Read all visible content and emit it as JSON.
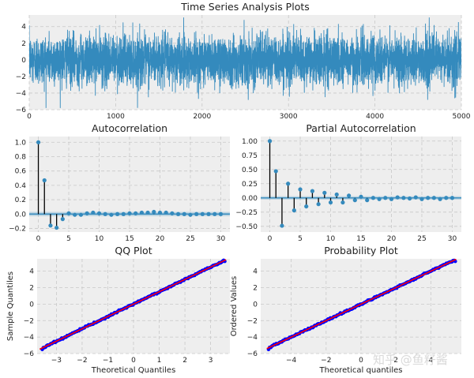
{
  "watermark": "知乎 @鱼籽酱",
  "colors": {
    "bg": "#eeeeee",
    "grid": "#c8c8c8",
    "line": "#348ABD",
    "stem": "#000000",
    "band": "#348ABD",
    "qq_points": "#0000ff",
    "qq_line": "#ff0000"
  },
  "chart_data": [
    {
      "id": "ts",
      "type": "line",
      "title": "Time Series Analysis Plots",
      "xlim": [
        0,
        5000
      ],
      "ylim": [
        -6,
        5.4
      ],
      "xticks": [
        0,
        1000,
        2000,
        3000,
        4000,
        5000
      ],
      "yticks": [
        -6,
        -4,
        -2,
        0,
        2,
        4
      ],
      "n_points": 5000,
      "approx_std": 1.5,
      "grid": true
    },
    {
      "id": "acf",
      "type": "stem",
      "title": "Autocorrelation",
      "xlim": [
        -1.5,
        31.5
      ],
      "ylim": [
        -0.25,
        1.08
      ],
      "xticks": [
        0,
        5,
        10,
        15,
        20,
        25,
        30
      ],
      "yticks": [
        -0.2,
        0.0,
        0.2,
        0.4,
        0.6,
        0.8,
        1.0
      ],
      "x": [
        0,
        1,
        2,
        3,
        4,
        5,
        6,
        7,
        8,
        9,
        10,
        11,
        12,
        13,
        14,
        15,
        16,
        17,
        18,
        19,
        20,
        21,
        22,
        23,
        24,
        25,
        26,
        27,
        28,
        29,
        30
      ],
      "values": [
        1.0,
        0.47,
        -0.16,
        -0.19,
        -0.07,
        0.01,
        -0.01,
        -0.01,
        0.01,
        0.02,
        0.01,
        0.0,
        -0.01,
        0.0,
        0.0,
        0.01,
        0.01,
        0.02,
        0.02,
        0.03,
        0.02,
        0.02,
        0.01,
        0.0,
        0.0,
        -0.01,
        0.0,
        0.0,
        0.0,
        0.0,
        0.0
      ],
      "conf_band": 0.03,
      "grid": true
    },
    {
      "id": "pacf",
      "type": "stem",
      "title": "Partial Autocorrelation",
      "xlim": [
        -1.5,
        31.5
      ],
      "ylim": [
        -0.6,
        1.08
      ],
      "xticks": [
        0,
        5,
        10,
        15,
        20,
        25,
        30
      ],
      "yticks": [
        -0.5,
        -0.25,
        0.0,
        0.25,
        0.5,
        0.75,
        1.0
      ],
      "x": [
        0,
        1,
        2,
        3,
        4,
        5,
        6,
        7,
        8,
        9,
        10,
        11,
        12,
        13,
        14,
        15,
        16,
        17,
        18,
        19,
        20,
        21,
        22,
        23,
        24,
        25,
        26,
        27,
        28,
        29,
        30
      ],
      "values": [
        1.0,
        0.47,
        -0.49,
        0.25,
        -0.22,
        0.15,
        -0.15,
        0.12,
        -0.11,
        0.09,
        -0.08,
        0.06,
        -0.08,
        0.04,
        -0.04,
        0.02,
        -0.04,
        0.0,
        -0.02,
        0.0,
        -0.02,
        0.01,
        0.0,
        -0.01,
        0.01,
        -0.02,
        0.0,
        0.0,
        -0.02,
        0.0,
        0.0
      ],
      "conf_band": 0.03,
      "grid": true
    },
    {
      "id": "qq",
      "type": "scatter",
      "title": "QQ Plot",
      "xlabel": "Theoretical Quantiles",
      "ylabel": "Sample Quantiles",
      "xlim": [
        -3.75,
        3.75
      ],
      "ylim": [
        -6,
        5.5
      ],
      "xticks": [
        -3,
        -2,
        -1,
        0,
        1,
        2,
        3
      ],
      "yticks": [
        -6,
        -4,
        -2,
        0,
        2,
        4
      ],
      "x_range": [
        -3.55,
        3.55
      ],
      "line_slope": 1.5,
      "line_intercept": 0,
      "y_min": -5.5,
      "y_max": 5.2,
      "grid": true
    },
    {
      "id": "prob",
      "type": "scatter",
      "title": "Probability Plot",
      "xlabel": "Theoretical quantiles",
      "ylabel": "Ordered Values",
      "xlim": [
        -5.75,
        5.75
      ],
      "ylim": [
        -6,
        5.5
      ],
      "xticks": [
        -4,
        -2,
        0,
        2,
        4
      ],
      "yticks": [
        -6,
        -4,
        -2,
        0,
        2,
        4
      ],
      "x_range": [
        -5.3,
        5.4
      ],
      "line_slope": 1.0,
      "line_intercept": 0,
      "y_min": -5.5,
      "y_max": 5.2,
      "grid": true
    }
  ]
}
